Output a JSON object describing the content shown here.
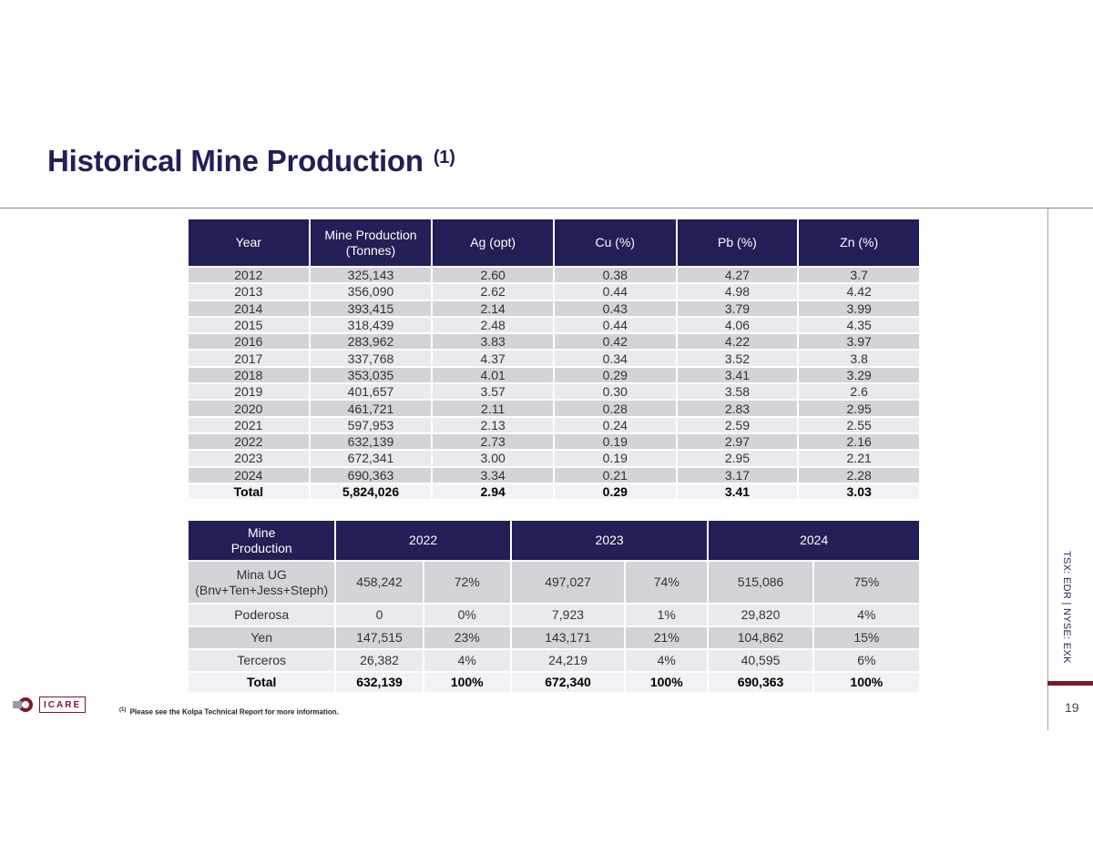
{
  "header": {
    "title": "Historical Mine Production",
    "title_note": "(1)"
  },
  "production_table": {
    "headers": [
      "Year",
      "Mine Production\n(Tonnes)",
      "Ag (opt)",
      "Cu (%)",
      "Pb (%)",
      "Zn (%)"
    ],
    "rows": [
      [
        "2012",
        "325,143",
        "2.60",
        "0.38",
        "4.27",
        "3.7"
      ],
      [
        "2013",
        "356,090",
        "2.62",
        "0.44",
        "4.98",
        "4.42"
      ],
      [
        "2014",
        "393,415",
        "2.14",
        "0.43",
        "3.79",
        "3.99"
      ],
      [
        "2015",
        "318,439",
        "2.48",
        "0.44",
        "4.06",
        "4.35"
      ],
      [
        "2016",
        "283,962",
        "3.83",
        "0.42",
        "4.22",
        "3.97"
      ],
      [
        "2017",
        "337,768",
        "4.37",
        "0.34",
        "3.52",
        "3.8"
      ],
      [
        "2018",
        "353,035",
        "4.01",
        "0.29",
        "3.41",
        "3.29"
      ],
      [
        "2019",
        "401,657",
        "3.57",
        "0.30",
        "3.58",
        "2.6"
      ],
      [
        "2020",
        "461,721",
        "2.11",
        "0.28",
        "2.83",
        "2.95"
      ],
      [
        "2021",
        "597,953",
        "2.13",
        "0.24",
        "2.59",
        "2.55"
      ],
      [
        "2022",
        "632,139",
        "2.73",
        "0.19",
        "2.97",
        "2.16"
      ],
      [
        "2023",
        "672,341",
        "3.00",
        "0.19",
        "2.95",
        "2.21"
      ],
      [
        "2024",
        "690,363",
        "3.34",
        "0.21",
        "3.17",
        "2.28"
      ]
    ],
    "total": [
      "Total",
      "5,824,026",
      "2.94",
      "0.29",
      "3.41",
      "3.03"
    ]
  },
  "source_table": {
    "headers": [
      "Mine\nProduction",
      "2022",
      "2023",
      "2024"
    ],
    "rows": [
      [
        "Mina UG\n(Bnv+Ten+Jess+Steph)",
        "458,242",
        "72%",
        "497,027",
        "74%",
        "515,086",
        "75%"
      ],
      [
        "Poderosa",
        "0",
        "0%",
        "7,923",
        "1%",
        "29,820",
        "4%"
      ],
      [
        "Yen",
        "147,515",
        "23%",
        "143,171",
        "21%",
        "104,862",
        "15%"
      ],
      [
        "Terceros",
        "26,382",
        "4%",
        "24,219",
        "4%",
        "40,595",
        "6%"
      ]
    ],
    "total": [
      "Total",
      "632,139",
      "100%",
      "672,340",
      "100%",
      "690,363",
      "100%"
    ]
  },
  "sidebar": {
    "ticker": "TSX: EDR | NYSE: EXK",
    "page_number": "19"
  },
  "footer": {
    "logo_text": "ICARE",
    "footnote_marker": "(1)",
    "footnote": "Please see the Kolpa Technical Report for more information."
  },
  "colors": {
    "header_bg": "#211f55",
    "accent": "#7a1a2b",
    "row_dark": "#d3d3d8",
    "row_light": "#e9e9ee"
  }
}
